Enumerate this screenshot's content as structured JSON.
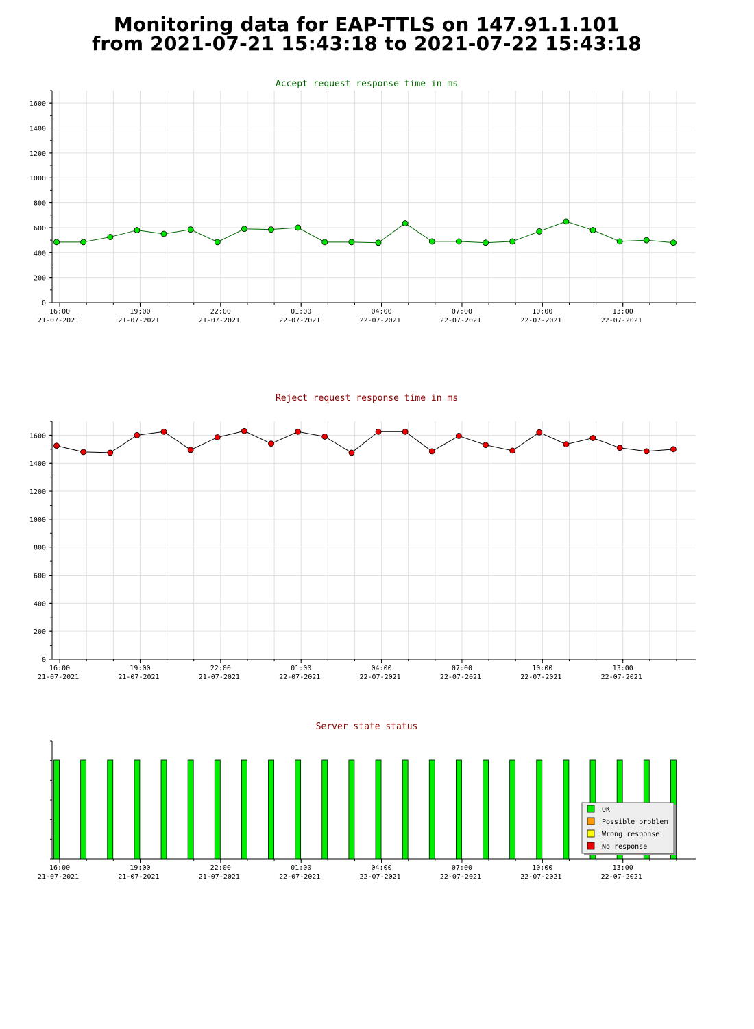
{
  "page": {
    "title_line1": "Monitoring data for EAP-TTLS on 147.91.1.101",
    "title_line2": "from 2021-07-21 15:43:18 to 2021-07-22 15:43:18"
  },
  "x_axis": {
    "ticks": [
      {
        "time": "16:00",
        "date": "21-07-2021"
      },
      {
        "time": "19:00",
        "date": "21-07-2021"
      },
      {
        "time": "22:00",
        "date": "21-07-2021"
      },
      {
        "time": "01:00",
        "date": "22-07-2021"
      },
      {
        "time": "04:00",
        "date": "22-07-2021"
      },
      {
        "time": "07:00",
        "date": "22-07-2021"
      },
      {
        "time": "10:00",
        "date": "22-07-2021"
      },
      {
        "time": "13:00",
        "date": "22-07-2021"
      }
    ]
  },
  "chart_data": [
    {
      "type": "line",
      "title": "Accept request response time in ms",
      "title_color": "#006400",
      "line_color": "#006400",
      "marker_color": "#00e400",
      "x": [
        "2021-07-21 15:53",
        "2021-07-21 16:53",
        "2021-07-21 17:53",
        "2021-07-21 18:53",
        "2021-07-21 19:53",
        "2021-07-21 20:53",
        "2021-07-21 21:53",
        "2021-07-21 22:53",
        "2021-07-21 23:53",
        "2021-07-22 00:53",
        "2021-07-22 01:53",
        "2021-07-22 02:53",
        "2021-07-22 03:53",
        "2021-07-22 04:53",
        "2021-07-22 05:53",
        "2021-07-22 06:53",
        "2021-07-22 07:53",
        "2021-07-22 08:53",
        "2021-07-22 09:53",
        "2021-07-22 10:53",
        "2021-07-22 11:53",
        "2021-07-22 12:53",
        "2021-07-22 13:53",
        "2021-07-22 14:53"
      ],
      "values": [
        485,
        485,
        525,
        580,
        550,
        585,
        485,
        590,
        585,
        600,
        485,
        485,
        480,
        635,
        490,
        490,
        480,
        490,
        570,
        650,
        580,
        490,
        500,
        480
      ],
      "ylim": [
        0,
        1700
      ],
      "yticks": [
        0,
        200,
        400,
        600,
        800,
        1000,
        1200,
        1400,
        1600
      ],
      "grid": true
    },
    {
      "type": "line",
      "title": "Reject request response time in ms",
      "title_color": "#8b0000",
      "line_color": "#000000",
      "marker_color": "#ee0000",
      "x": [
        "2021-07-21 15:53",
        "2021-07-21 16:53",
        "2021-07-21 17:53",
        "2021-07-21 18:53",
        "2021-07-21 19:53",
        "2021-07-21 20:53",
        "2021-07-21 21:53",
        "2021-07-21 22:53",
        "2021-07-21 23:53",
        "2021-07-22 00:53",
        "2021-07-22 01:53",
        "2021-07-22 02:53",
        "2021-07-22 03:53",
        "2021-07-22 04:53",
        "2021-07-22 05:53",
        "2021-07-22 06:53",
        "2021-07-22 07:53",
        "2021-07-22 08:53",
        "2021-07-22 09:53",
        "2021-07-22 10:53",
        "2021-07-22 11:53",
        "2021-07-22 12:53",
        "2021-07-22 13:53",
        "2021-07-22 14:53"
      ],
      "values": [
        1525,
        1480,
        1475,
        1600,
        1625,
        1495,
        1585,
        1630,
        1540,
        1625,
        1590,
        1475,
        1625,
        1625,
        1485,
        1595,
        1530,
        1490,
        1620,
        1535,
        1580,
        1510,
        1485,
        1500
      ],
      "ylim": [
        0,
        1700
      ],
      "yticks": [
        0,
        200,
        400,
        600,
        800,
        1000,
        1200,
        1400,
        1600
      ],
      "grid": true
    },
    {
      "type": "bar",
      "title": "Server state status",
      "title_color": "#8b0000",
      "x": [
        "2021-07-21 15:53",
        "2021-07-21 16:53",
        "2021-07-21 17:53",
        "2021-07-21 18:53",
        "2021-07-21 19:53",
        "2021-07-21 20:53",
        "2021-07-21 21:53",
        "2021-07-21 22:53",
        "2021-07-21 23:53",
        "2021-07-22 00:53",
        "2021-07-22 01:53",
        "2021-07-22 02:53",
        "2021-07-22 03:53",
        "2021-07-22 04:53",
        "2021-07-22 05:53",
        "2021-07-22 06:53",
        "2021-07-22 07:53",
        "2021-07-22 08:53",
        "2021-07-22 09:53",
        "2021-07-22 10:53",
        "2021-07-22 11:53",
        "2021-07-22 12:53",
        "2021-07-22 13:53",
        "2021-07-22 14:53"
      ],
      "states": [
        "OK",
        "OK",
        "OK",
        "OK",
        "OK",
        "OK",
        "OK",
        "OK",
        "OK",
        "OK",
        "OK",
        "OK",
        "OK",
        "OK",
        "OK",
        "OK",
        "OK",
        "OK",
        "OK",
        "OK",
        "OK",
        "OK",
        "OK",
        "OK"
      ],
      "legend": [
        {
          "label": "OK",
          "color": "#00ee00"
        },
        {
          "label": "Possible problem",
          "color": "#ff9900"
        },
        {
          "label": "Wrong response",
          "color": "#ffff00"
        },
        {
          "label": "No response",
          "color": "#ee0000"
        }
      ],
      "legend_position": "bottom-right",
      "grid": false
    }
  ]
}
